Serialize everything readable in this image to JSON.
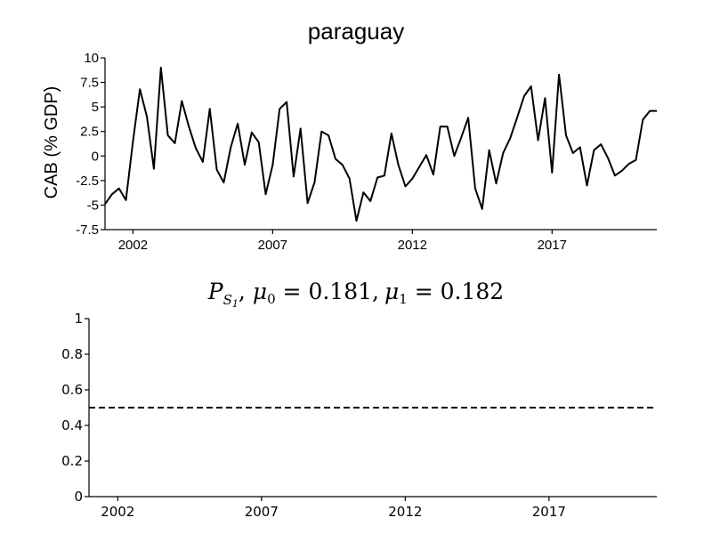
{
  "chart_data": [
    {
      "type": "line",
      "title": "paraguay",
      "xlabel": "",
      "ylabel": "CAB (% GDP)",
      "xlim": [
        2001.0,
        2020.75
      ],
      "ylim": [
        -7.5,
        10
      ],
      "x_ticks": [
        2002,
        2007,
        2012,
        2017
      ],
      "x_tick_labels": [
        "2002",
        "2007",
        "2012",
        "2017"
      ],
      "y_ticks": [
        -7.5,
        -5,
        -2.5,
        0,
        2.5,
        5,
        7.5,
        10
      ],
      "y_tick_labels": [
        "-7.5",
        "-5",
        "-2.5",
        "0",
        "2.5",
        "5",
        "7.5",
        "10"
      ],
      "grid": false,
      "series": [
        {
          "x": [
            2001.0,
            2001.25,
            2001.5,
            2001.75,
            2002.0,
            2002.25,
            2002.5,
            2002.75,
            2003.0,
            2003.25,
            2003.5,
            2003.75,
            2004.0,
            2004.25,
            2004.5,
            2004.75,
            2005.0,
            2005.25,
            2005.5,
            2005.75,
            2006.0,
            2006.25,
            2006.5,
            2006.75,
            2007.0,
            2007.25,
            2007.5,
            2007.75,
            2008.0,
            2008.25,
            2008.5,
            2008.75,
            2009.0,
            2009.25,
            2009.5,
            2009.75,
            2010.0,
            2010.25,
            2010.5,
            2010.75,
            2011.0,
            2011.25,
            2011.5,
            2011.75,
            2012.0,
            2012.25,
            2012.5,
            2012.75,
            2013.0,
            2013.25,
            2013.5,
            2013.75,
            2014.0,
            2014.25,
            2014.5,
            2014.75,
            2015.0,
            2015.25,
            2015.5,
            2015.75,
            2016.0,
            2016.25,
            2016.5,
            2016.75,
            2017.0,
            2017.25,
            2017.5,
            2017.75,
            2018.0,
            2018.25,
            2018.5,
            2018.75,
            2019.0,
            2019.25,
            2019.5,
            2019.75,
            2020.0,
            2020.25,
            2020.5,
            2020.75
          ],
          "values": [
            -4.9,
            -3.9,
            -3.3,
            -4.5,
            1.5,
            6.8,
            4.0,
            -1.3,
            9.0,
            2.1,
            1.3,
            5.6,
            3.0,
            0.8,
            -0.6,
            4.8,
            -1.4,
            -2.7,
            0.9,
            3.3,
            -0.9,
            2.4,
            1.4,
            -3.9,
            -0.9,
            4.8,
            5.5,
            -2.1,
            2.8,
            -4.8,
            -2.7,
            2.5,
            2.1,
            -0.3,
            -0.9,
            -2.3,
            -6.6,
            -3.7,
            -4.6,
            -2.2,
            -2.0,
            2.3,
            -0.9,
            -3.1,
            -2.3,
            -1.1,
            0.1,
            -1.9,
            3.0,
            3.0,
            0.0,
            1.9,
            3.9,
            -3.3,
            -5.4,
            0.6,
            -2.8,
            0.3,
            1.8,
            3.9,
            6.1,
            7.1,
            1.6,
            5.9,
            -1.7,
            8.3,
            2.1,
            0.3,
            0.9,
            -3.0,
            0.6,
            1.2,
            -0.2,
            -2.0,
            -1.5,
            -0.8,
            -0.4,
            3.7,
            4.6,
            4.6
          ]
        }
      ]
    },
    {
      "type": "line",
      "title": "P_{S_1}, μ_0 = 0.181, μ_1 = 0.182",
      "title_parts": {
        "p": "P",
        "p_sub": "S",
        "p_subsub": "1",
        "mu0": "μ",
        "mu0_sub": "0",
        "mu0_val": " = 0.181,",
        "mu1": "μ",
        "mu1_sub": "1",
        "mu1_val": " = 0.182"
      },
      "xlabel": "",
      "ylabel": "",
      "xlim": [
        2001.0,
        2020.75
      ],
      "ylim": [
        0,
        1
      ],
      "x_ticks": [
        2002,
        2007,
        2012,
        2017
      ],
      "x_tick_labels": [
        "2002",
        "2007",
        "2012",
        "2017"
      ],
      "y_ticks": [
        0,
        0.2,
        0.4,
        0.6,
        0.8,
        1
      ],
      "y_tick_labels": [
        "0",
        "0.2",
        "0.4",
        "0.6",
        "0.8",
        "1"
      ],
      "grid": false,
      "series": [
        {
          "style": "dashed",
          "x": [
            2001.0,
            2020.75
          ],
          "values": [
            0.5,
            0.5
          ]
        }
      ]
    }
  ]
}
